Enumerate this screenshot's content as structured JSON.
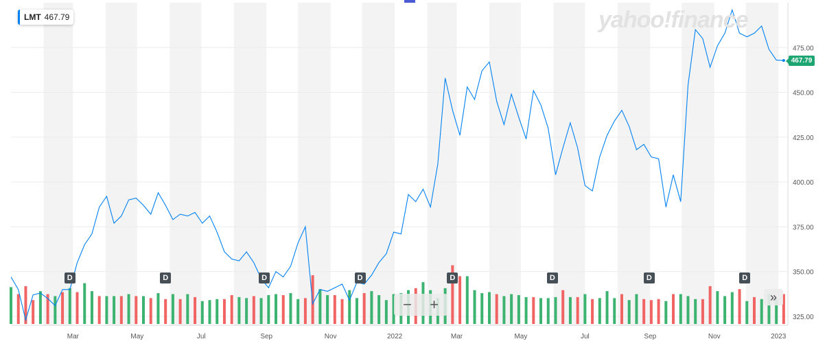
{
  "ticker": {
    "symbol": "LMT",
    "price": "467.79"
  },
  "price_tag": "467.79",
  "watermark": "yahoo!finance",
  "dividend_marker_label": "D",
  "zoom": {
    "minus": "−",
    "plus": "+"
  },
  "expand_icon": "»",
  "colors": {
    "line": "#0081f2",
    "vol_up": "#3cb371",
    "vol_down": "#f06464",
    "band": "#f3f3f3",
    "grid": "#ececec",
    "price_tag": "#1ea672",
    "axis_text": "#555555"
  },
  "chart_data": {
    "type": "line",
    "title": "",
    "xlabel": "",
    "ylabel": "",
    "ylim": [
      320,
      500
    ],
    "y_ticks": [
      325,
      350,
      375,
      400,
      425,
      450,
      475
    ],
    "y_tick_labels": [
      "325.00",
      "350.00",
      "375.00",
      "400.00",
      "425.00",
      "450.00",
      "475.00"
    ],
    "x_range": [
      "2021-01-01",
      "2023-01-10"
    ],
    "x_ticks": [
      {
        "date": "2021-03-01",
        "label": "Mar"
      },
      {
        "date": "2021-05-01",
        "label": "May"
      },
      {
        "date": "2021-07-01",
        "label": "Jul"
      },
      {
        "date": "2021-09-01",
        "label": "Sep"
      },
      {
        "date": "2021-11-01",
        "label": "Nov"
      },
      {
        "date": "2022-01-01",
        "label": "2022"
      },
      {
        "date": "2022-03-01",
        "label": "Mar"
      },
      {
        "date": "2022-05-01",
        "label": "May"
      },
      {
        "date": "2022-07-01",
        "label": "Jul"
      },
      {
        "date": "2022-09-01",
        "label": "Sep"
      },
      {
        "date": "2022-11-01",
        "label": "Nov"
      },
      {
        "date": "2023-01-01",
        "label": "2023"
      }
    ],
    "bands": [
      [
        "2021-02-01",
        "2021-03-01"
      ],
      [
        "2021-04-01",
        "2021-05-01"
      ],
      [
        "2021-06-01",
        "2021-07-01"
      ],
      [
        "2021-08-01",
        "2021-09-01"
      ],
      [
        "2021-10-01",
        "2021-11-01"
      ],
      [
        "2021-12-01",
        "2022-01-01"
      ],
      [
        "2022-02-01",
        "2022-03-01"
      ],
      [
        "2022-04-01",
        "2022-05-01"
      ],
      [
        "2022-06-01",
        "2022-07-01"
      ],
      [
        "2022-08-01",
        "2022-09-01"
      ],
      [
        "2022-10-01",
        "2022-11-01"
      ],
      [
        "2022-12-01",
        "2023-01-01"
      ]
    ],
    "series": [
      {
        "name": "LMT",
        "x": [
          "2021-01-01",
          "2021-01-08",
          "2021-01-15",
          "2021-01-22",
          "2021-01-29",
          "2021-02-05",
          "2021-02-12",
          "2021-02-19",
          "2021-02-26",
          "2021-03-05",
          "2021-03-12",
          "2021-03-19",
          "2021-03-26",
          "2021-04-02",
          "2021-04-09",
          "2021-04-16",
          "2021-04-23",
          "2021-04-30",
          "2021-05-07",
          "2021-05-14",
          "2021-05-21",
          "2021-05-28",
          "2021-06-04",
          "2021-06-11",
          "2021-06-18",
          "2021-06-25",
          "2021-07-02",
          "2021-07-09",
          "2021-07-16",
          "2021-07-23",
          "2021-07-30",
          "2021-08-06",
          "2021-08-13",
          "2021-08-20",
          "2021-08-27",
          "2021-09-03",
          "2021-09-10",
          "2021-09-17",
          "2021-09-24",
          "2021-10-01",
          "2021-10-08",
          "2021-10-15",
          "2021-10-22",
          "2021-10-29",
          "2021-11-05",
          "2021-11-12",
          "2021-11-19",
          "2021-11-26",
          "2021-12-03",
          "2021-12-10",
          "2021-12-17",
          "2021-12-24",
          "2021-12-31",
          "2022-01-07",
          "2022-01-14",
          "2022-01-21",
          "2022-01-28",
          "2022-02-04",
          "2022-02-11",
          "2022-02-18",
          "2022-02-25",
          "2022-03-04",
          "2022-03-11",
          "2022-03-18",
          "2022-03-25",
          "2022-04-01",
          "2022-04-08",
          "2022-04-15",
          "2022-04-22",
          "2022-04-29",
          "2022-05-06",
          "2022-05-13",
          "2022-05-20",
          "2022-05-27",
          "2022-06-03",
          "2022-06-10",
          "2022-06-17",
          "2022-06-24",
          "2022-07-01",
          "2022-07-08",
          "2022-07-15",
          "2022-07-22",
          "2022-07-29",
          "2022-08-05",
          "2022-08-12",
          "2022-08-19",
          "2022-08-26",
          "2022-09-02",
          "2022-09-09",
          "2022-09-16",
          "2022-09-23",
          "2022-09-30",
          "2022-10-07",
          "2022-10-14",
          "2022-10-21",
          "2022-10-28",
          "2022-11-04",
          "2022-11-11",
          "2022-11-18",
          "2022-11-25",
          "2022-12-02",
          "2022-12-09",
          "2022-12-16",
          "2022-12-23",
          "2022-12-30",
          "2023-01-06"
        ],
        "values": [
          347,
          340,
          323,
          337,
          338,
          335,
          331,
          340,
          340,
          355,
          365,
          371,
          386,
          392,
          377,
          381,
          390,
          391,
          387,
          382,
          394,
          387,
          379,
          382,
          381,
          383,
          377,
          381,
          372,
          361,
          357,
          356,
          361,
          355,
          346,
          341,
          350,
          347,
          353,
          366,
          375,
          332,
          340,
          339,
          341,
          343,
          334,
          344,
          343,
          348,
          355,
          360,
          372,
          371,
          393,
          389,
          396,
          386,
          410,
          458,
          440,
          426,
          453,
          446,
          462,
          467,
          445,
          432,
          449,
          436,
          424,
          451,
          443,
          430,
          404,
          419,
          433,
          419,
          398,
          395,
          414,
          426,
          434,
          440,
          431,
          418,
          421,
          414,
          413,
          386,
          404,
          389,
          454,
          485,
          480,
          464,
          476,
          483,
          496,
          483,
          481,
          483,
          487,
          474,
          468,
          467.79
        ]
      }
    ],
    "volume": {
      "up": [
        1,
        0,
        0,
        0,
        1,
        0,
        1,
        0,
        1,
        0,
        1,
        1,
        0,
        1,
        1,
        0,
        1,
        0,
        1,
        0,
        1,
        0,
        1,
        0,
        1,
        0,
        1,
        1,
        1,
        0,
        0,
        1,
        1,
        0,
        1,
        1,
        1,
        0,
        1,
        1,
        0,
        0,
        1,
        1,
        0,
        0,
        1,
        1,
        0,
        1,
        1,
        1,
        1,
        1,
        1,
        0,
        1,
        1,
        1,
        1,
        0,
        0,
        1,
        1,
        1,
        1,
        0,
        1,
        1,
        1,
        1,
        0,
        1,
        1,
        1,
        0,
        1,
        0,
        1,
        0,
        1,
        1,
        1,
        0,
        1,
        1,
        0,
        0,
        0,
        1,
        0,
        1,
        1,
        1,
        0,
        0,
        1,
        1,
        1,
        0,
        1,
        0,
        1,
        1,
        1,
        0
      ],
      "values": [
        37,
        30,
        38,
        24,
        33,
        30,
        28,
        32,
        36,
        32,
        41,
        33,
        28,
        28,
        28,
        28,
        30,
        28,
        28,
        26,
        31,
        25,
        30,
        25,
        30,
        27,
        23,
        24,
        25,
        25,
        29,
        27,
        26,
        28,
        26,
        29,
        30,
        29,
        31,
        25,
        26,
        49,
        35,
        29,
        29,
        25,
        34,
        26,
        31,
        33,
        29,
        24,
        30,
        31,
        34,
        36,
        42,
        34,
        26,
        36,
        59,
        48,
        48,
        34,
        31,
        32,
        30,
        28,
        30,
        29,
        27,
        27,
        26,
        26,
        27,
        34,
        27,
        27,
        30,
        25,
        26,
        33,
        26,
        30,
        24,
        30,
        25,
        24,
        25,
        23,
        30,
        30,
        28,
        25,
        25,
        38,
        33,
        28,
        32,
        35,
        23,
        27,
        25,
        30,
        25,
        30
      ]
    },
    "dividend_dates": [
      "2021-02-26",
      "2021-05-28",
      "2021-08-30",
      "2021-11-29",
      "2022-02-25",
      "2022-05-31",
      "2022-08-31",
      "2022-11-30"
    ],
    "last_price": 467.79
  }
}
